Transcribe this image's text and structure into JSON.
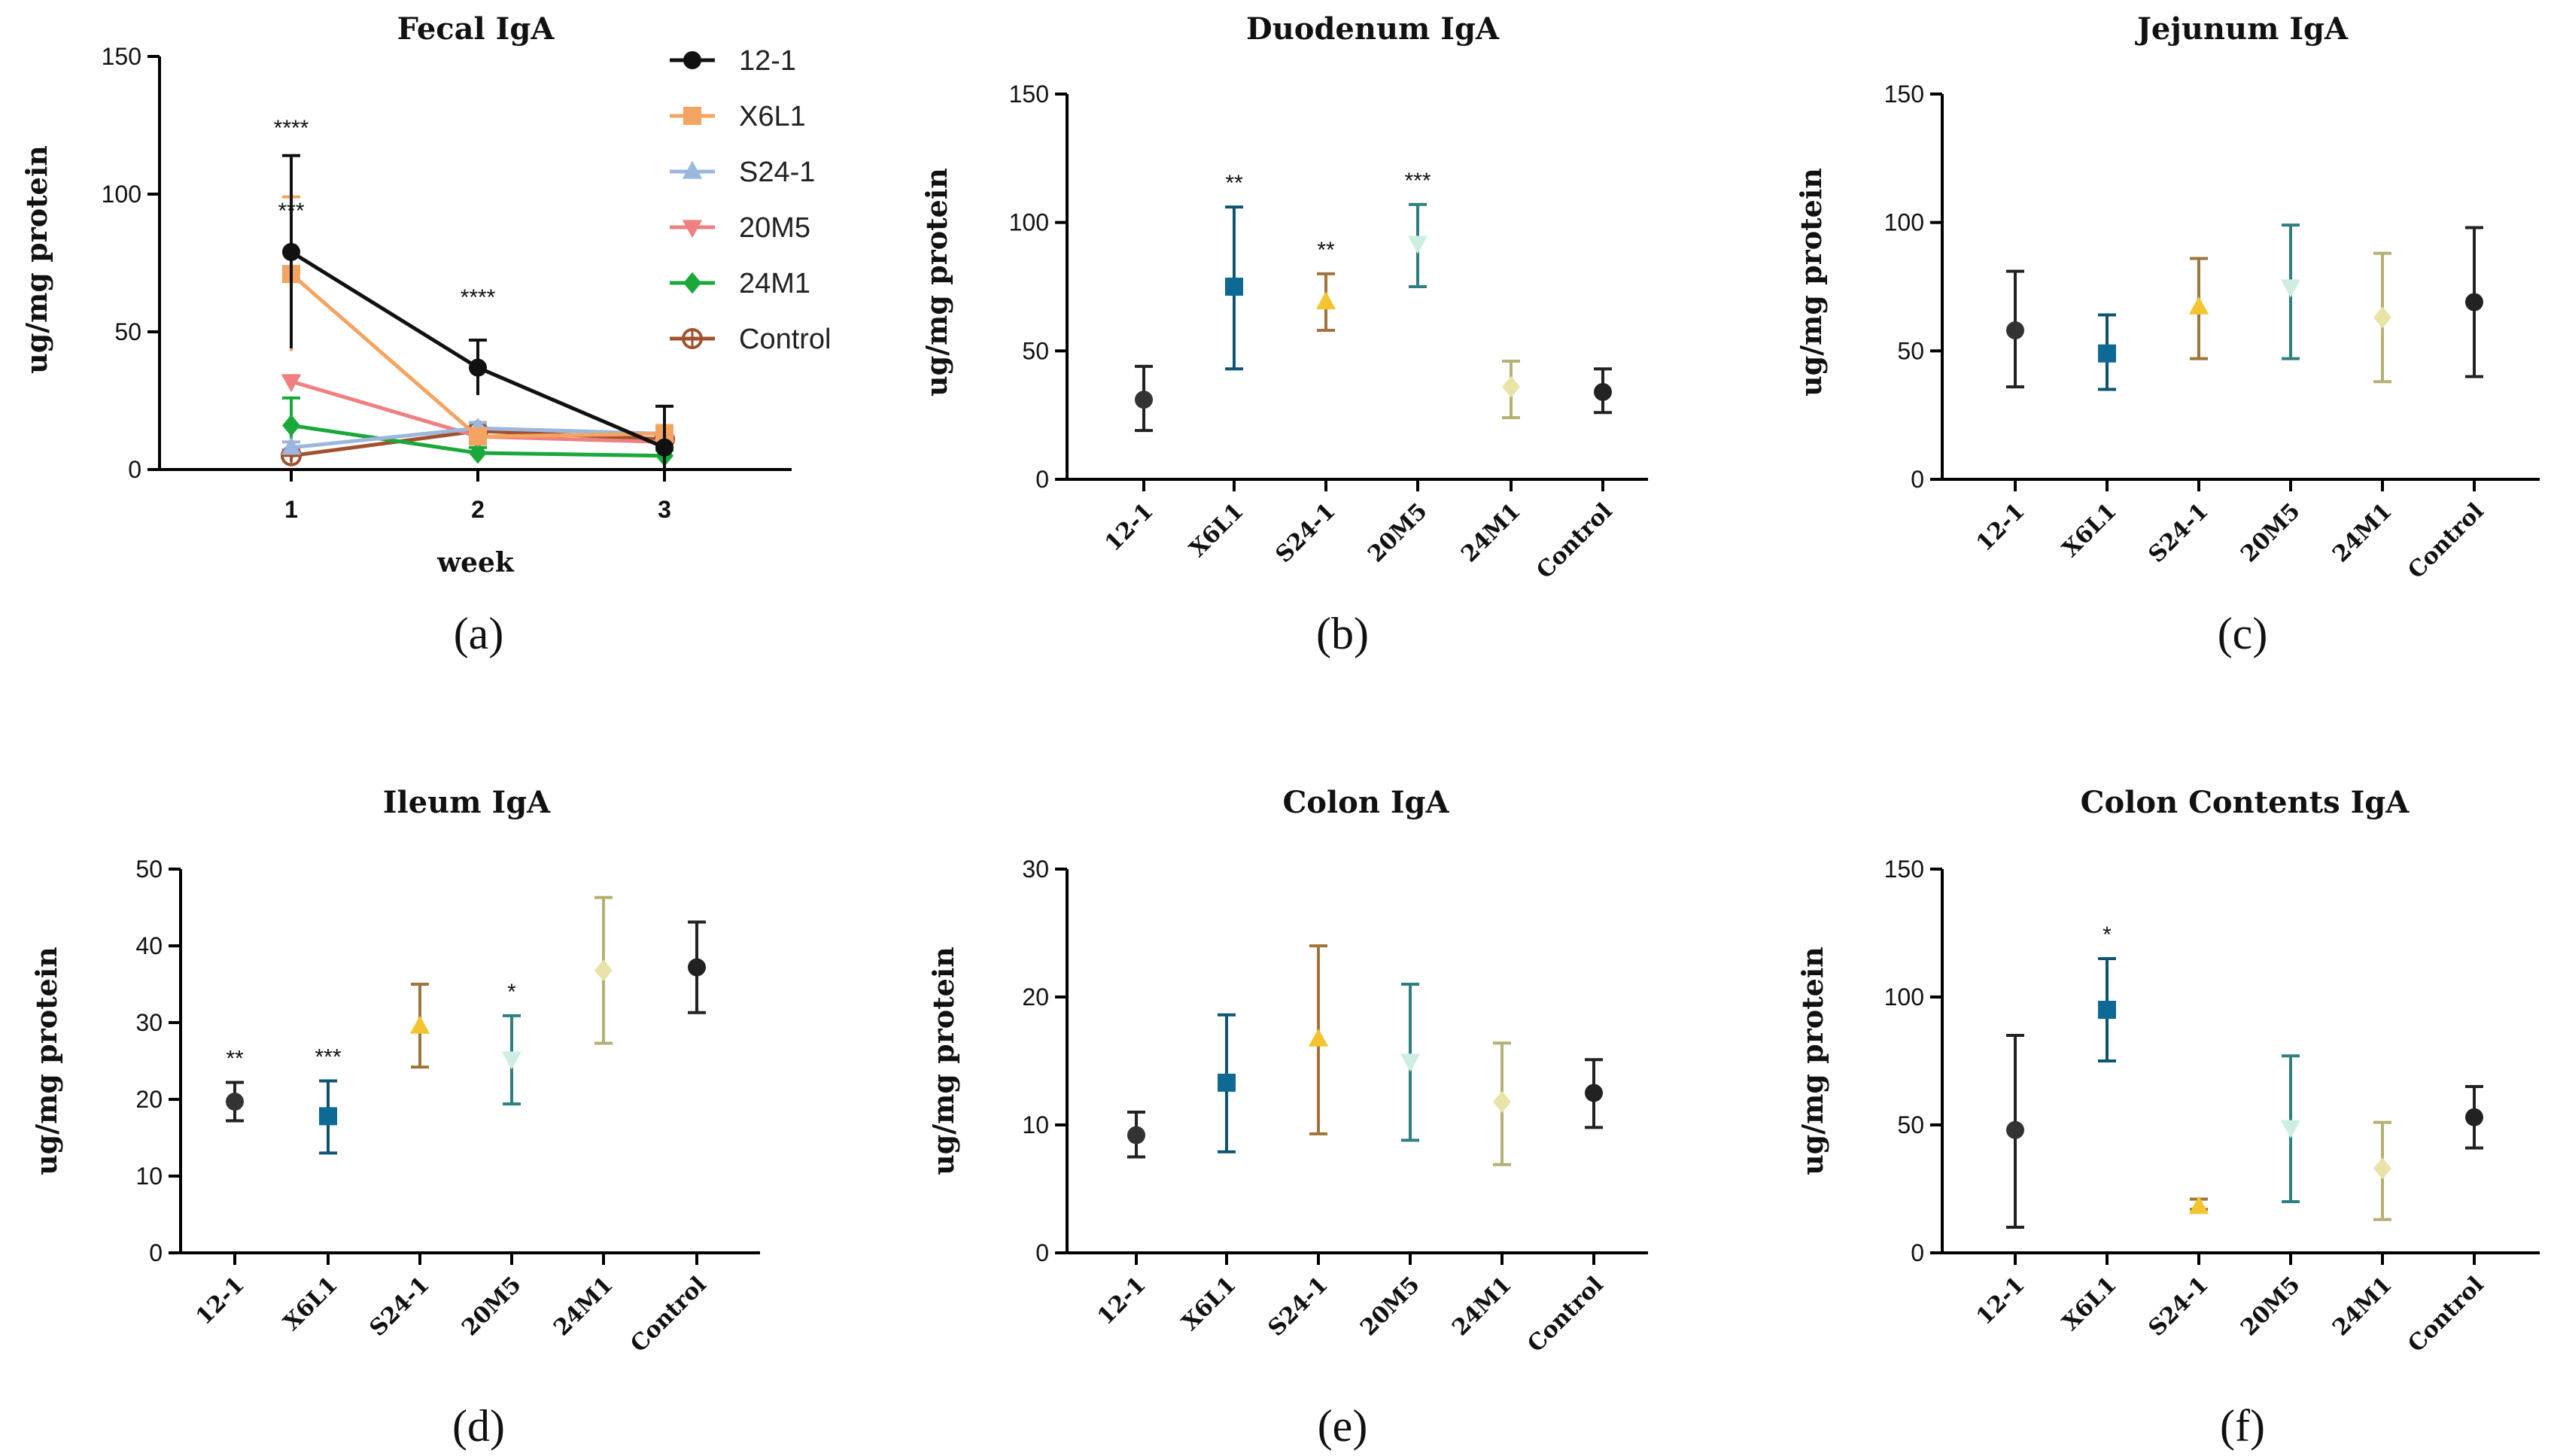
{
  "chart_data": [
    {
      "panel": "(a)",
      "type": "line",
      "title": "Fecal IgA",
      "xlabel": "week",
      "ylabel": "ug/mg protein",
      "ylim": [
        0,
        150
      ],
      "yticks": [
        "0",
        "50",
        "100",
        "150"
      ],
      "categories": [
        "1",
        "2",
        "3"
      ],
      "series": [
        {
          "name": "12-1",
          "color": "#111111",
          "marker": "circle",
          "values": [
            79,
            37,
            8
          ],
          "errors": [
            35,
            10,
            15
          ],
          "stars": [
            "****",
            "****",
            ""
          ]
        },
        {
          "name": "X6L1",
          "color": "#f4a460",
          "marker": "square",
          "values": [
            71,
            12,
            13
          ],
          "errors": [
            28,
            2,
            3
          ],
          "stars": [
            "***",
            "",
            ""
          ]
        },
        {
          "name": "S24-1",
          "color": "#9bb7de",
          "marker": "triangle-up",
          "values": [
            8,
            15,
            13
          ],
          "errors": [
            2,
            2,
            2
          ],
          "stars": [
            "",
            "",
            ""
          ]
        },
        {
          "name": "20M5",
          "color": "#f08080",
          "marker": "triangle-down",
          "values": [
            32,
            12,
            10
          ],
          "errors": [
            2,
            2,
            2
          ],
          "stars": [
            "",
            "",
            ""
          ]
        },
        {
          "name": "24M1",
          "color": "#1aa83a",
          "marker": "diamond",
          "values": [
            16,
            6,
            5
          ],
          "errors": [
            10,
            2,
            2
          ],
          "stars": [
            "",
            "",
            ""
          ]
        },
        {
          "name": "Control",
          "color": "#a0522d",
          "marker": "circle-cross",
          "values": [
            5,
            14,
            11
          ],
          "errors": [
            2,
            3,
            3
          ],
          "stars": [
            "",
            "",
            ""
          ]
        }
      ]
    },
    {
      "panel": "(b)",
      "type": "scatter",
      "title": "Duodenum IgA",
      "ylabel": "ug/mg protein",
      "ylim": [
        0,
        150
      ],
      "yticks": [
        "0",
        "50",
        "100",
        "150"
      ],
      "categories": [
        "12-1",
        "X6L1",
        "S24-1",
        "20M5",
        "24M1",
        "Control"
      ],
      "values": [
        31,
        75,
        69,
        92,
        36,
        34
      ],
      "err_low": [
        19,
        43,
        58,
        75,
        24,
        26
      ],
      "err_high": [
        44,
        106,
        80,
        107,
        46,
        43
      ],
      "stars": [
        "",
        "**",
        "**",
        "***",
        "",
        ""
      ]
    },
    {
      "panel": "(c)",
      "type": "scatter",
      "title": "Jejunum IgA",
      "ylabel": "ug/mg protein",
      "ylim": [
        0,
        150
      ],
      "yticks": [
        "0",
        "50",
        "100",
        "150"
      ],
      "categories": [
        "12-1",
        "X6L1",
        "S24-1",
        "20M5",
        "24M1",
        "Control"
      ],
      "values": [
        58,
        49,
        67,
        75,
        63,
        69
      ],
      "err_low": [
        36,
        35,
        47,
        47,
        38,
        40
      ],
      "err_high": [
        81,
        64,
        86,
        99,
        88,
        98
      ],
      "stars": [
        "",
        "",
        "",
        "",
        "",
        ""
      ]
    },
    {
      "panel": "(d)",
      "type": "scatter",
      "title": "Ileum IgA",
      "ylabel": "ug/mg protein",
      "ylim": [
        0,
        50
      ],
      "yticks": [
        "0",
        "10",
        "20",
        "30",
        "40",
        "50"
      ],
      "categories": [
        "12-1",
        "X6L1",
        "S24-1",
        "20M5",
        "24M1",
        "Control"
      ],
      "values": [
        19.7,
        17.8,
        29.5,
        25.3,
        36.8,
        37.2
      ],
      "err_low": [
        17.2,
        13,
        24.2,
        19.4,
        27.3,
        31.3
      ],
      "err_high": [
        22.2,
        22.4,
        35,
        30.9,
        46.3,
        43.1
      ],
      "stars": [
        "**",
        "***",
        "",
        "*",
        "",
        ""
      ]
    },
    {
      "panel": "(e)",
      "type": "scatter",
      "title": "Colon IgA",
      "ylabel": "ug/mg protein",
      "ylim": [
        0,
        30
      ],
      "yticks": [
        "0",
        "10",
        "20",
        "30"
      ],
      "categories": [
        "12-1",
        "X6L1",
        "S24-1",
        "20M5",
        "24M1",
        "Control"
      ],
      "values": [
        9.2,
        13.3,
        16.7,
        15,
        11.8,
        12.5
      ],
      "err_low": [
        7.5,
        7.9,
        9.3,
        8.8,
        6.9,
        9.8
      ],
      "err_high": [
        11,
        18.6,
        24,
        21,
        16.4,
        15.1
      ],
      "stars": [
        "",
        "",
        "",
        "",
        "",
        ""
      ]
    },
    {
      "panel": "(f)",
      "type": "scatter",
      "title": "Colon Contents IgA",
      "ylabel": "ug/mg protein",
      "ylim": [
        0,
        150
      ],
      "yticks": [
        "0",
        "50",
        "100",
        "150"
      ],
      "categories": [
        "12-1",
        "X6L1",
        "S24-1",
        "20M5",
        "24M1",
        "Control"
      ],
      "values": [
        48,
        95,
        18,
        49,
        33,
        53
      ],
      "err_low": [
        10,
        75,
        17,
        20,
        13,
        41
      ],
      "err_high": [
        85,
        115,
        21,
        77,
        51,
        65
      ],
      "stars": [
        "",
        "*",
        "",
        "",
        "",
        ""
      ]
    }
  ],
  "style": {
    "group_colors": [
      "#333333",
      "#0e6a94",
      "#f4c430",
      "#cdeee0",
      "#e8e4a8",
      "#222222"
    ],
    "bar_colors": [
      "#222222",
      "#0e5470",
      "#a0743a",
      "#2e8080",
      "#b5b073",
      "#222222"
    ],
    "axis_color": "#000000"
  }
}
